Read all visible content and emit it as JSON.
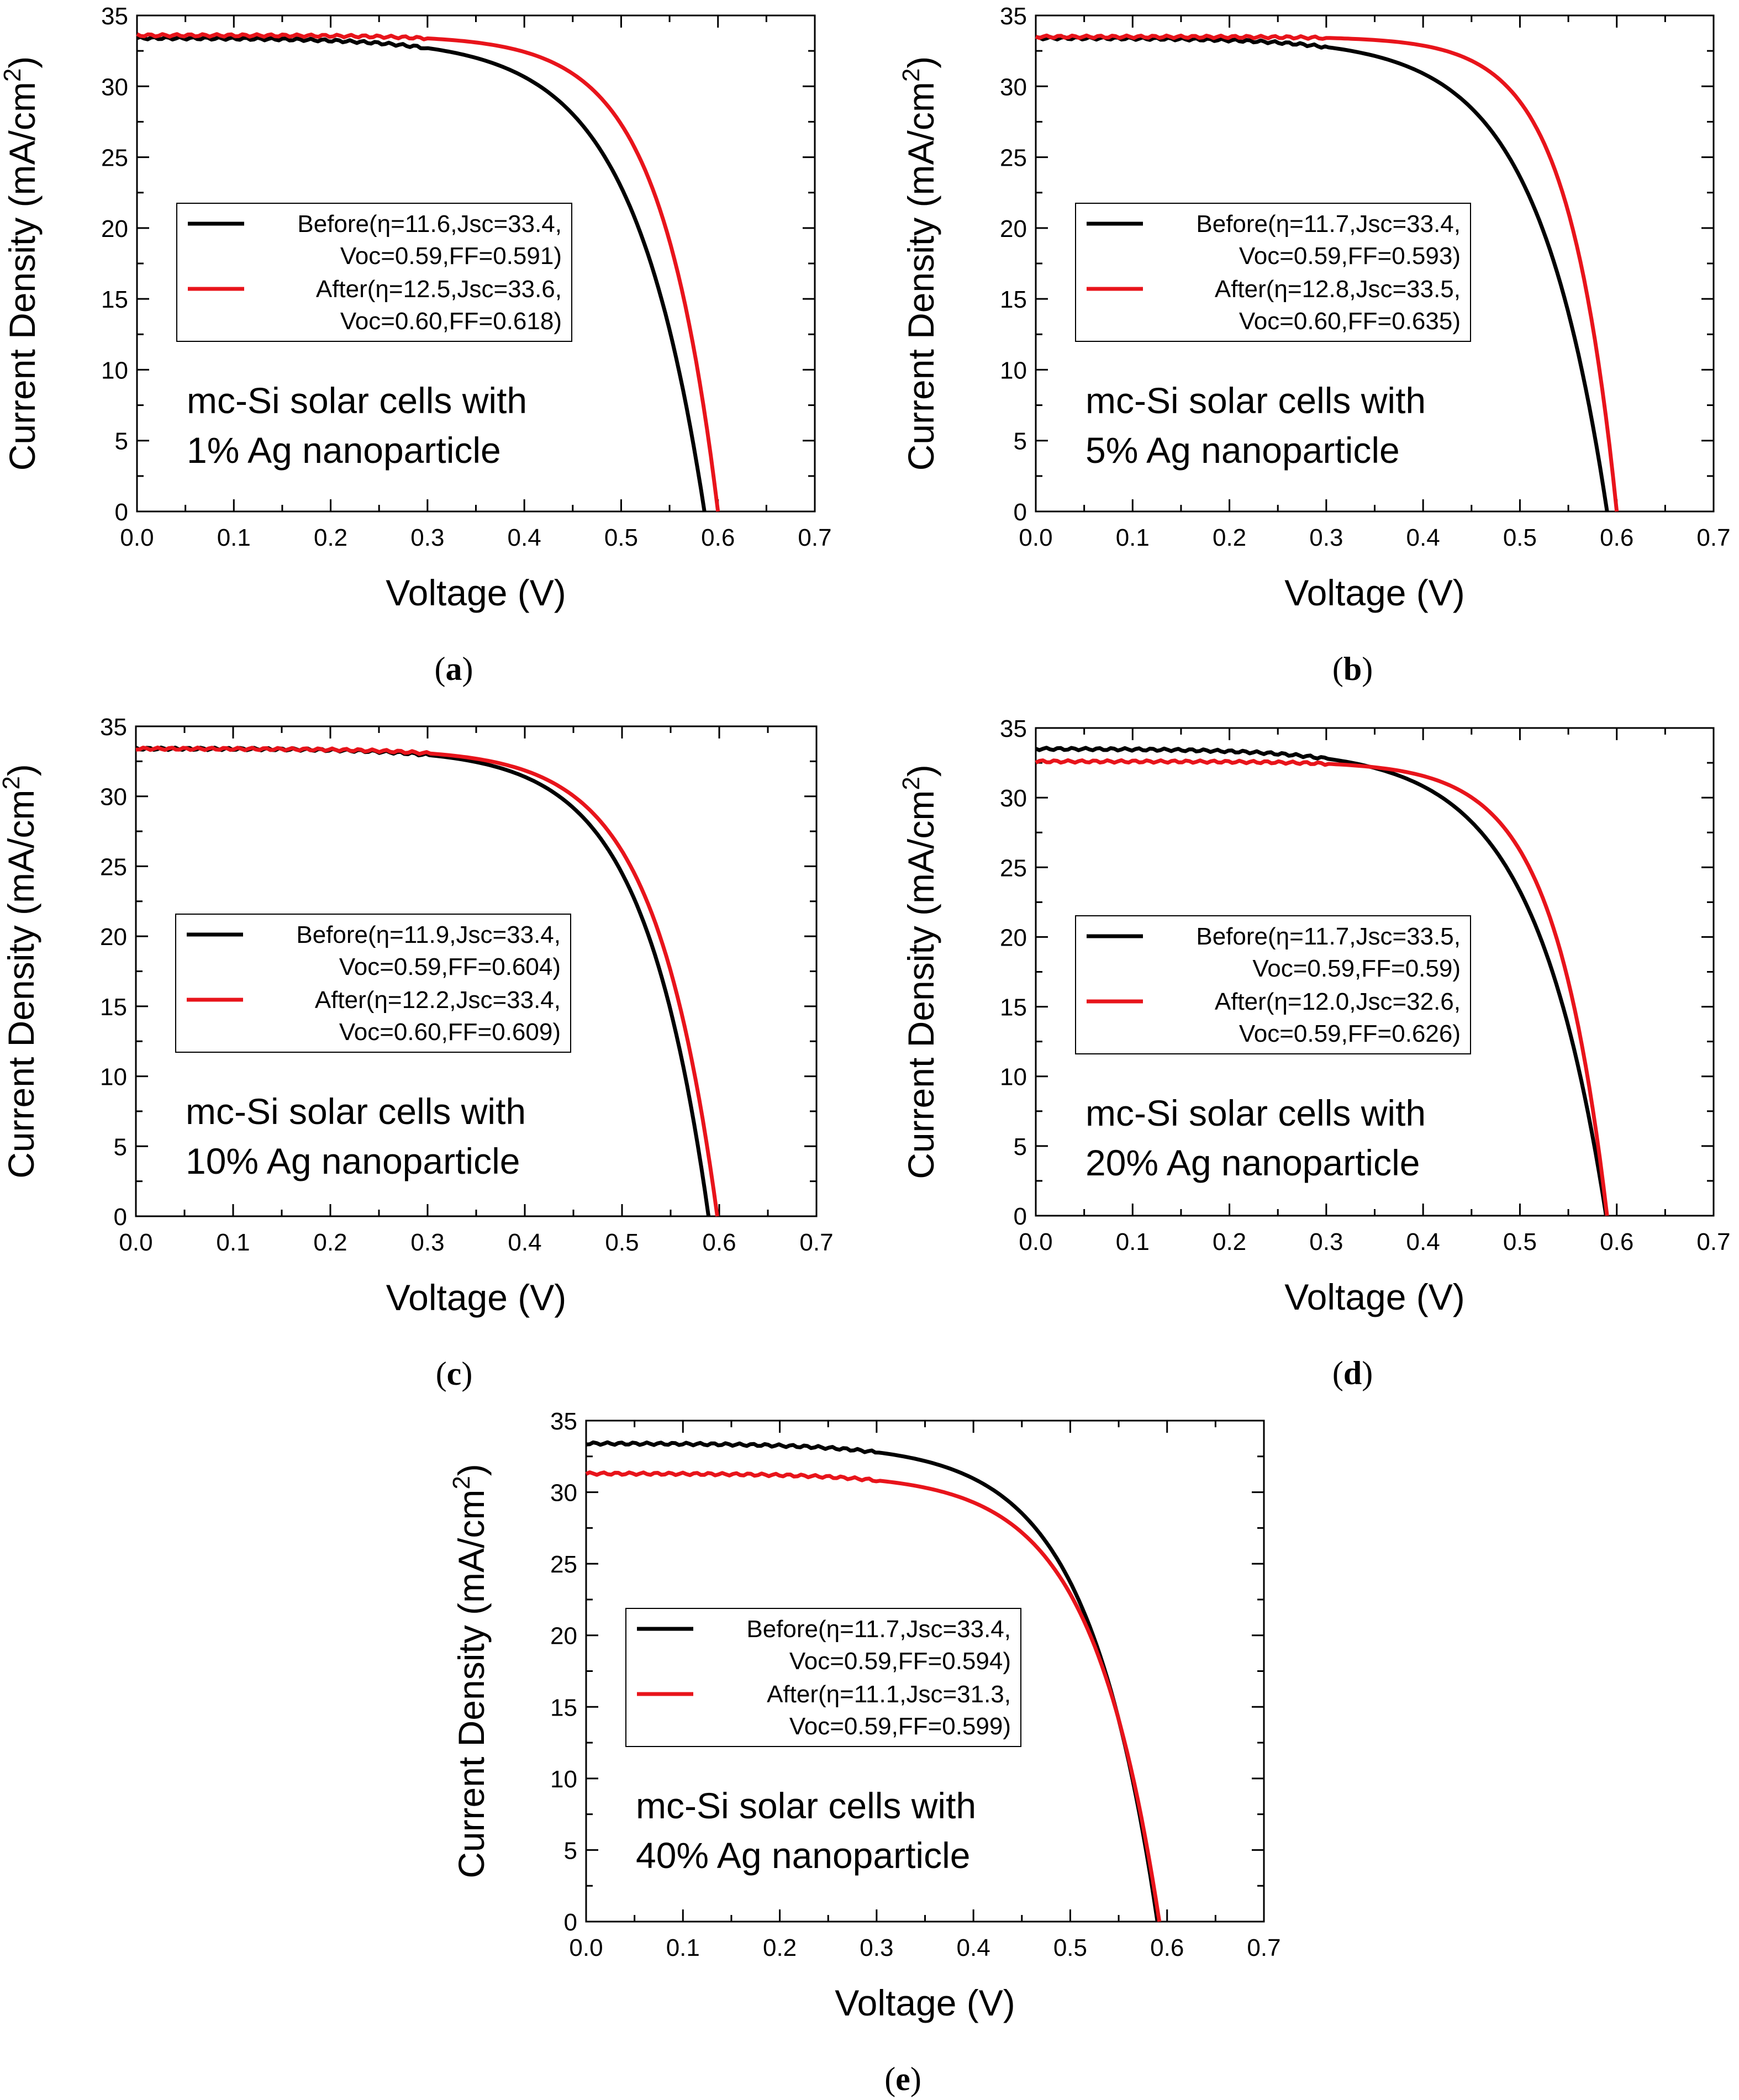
{
  "colors": {
    "before": "#000000",
    "after": "#e8141b",
    "axis": "#000000"
  },
  "chart_data": [
    {
      "panel": "(a)",
      "type": "line",
      "xlabel": "Voltage (V)",
      "ylabel": "Current Density (mA/cm2)",
      "xlim": [
        0.0,
        0.7
      ],
      "ylim": [
        0,
        35
      ],
      "xticks": [
        "0.0",
        "0.1",
        "0.2",
        "0.3",
        "0.4",
        "0.5",
        "0.6",
        "0.7"
      ],
      "yticks": [
        "0",
        "5",
        "10",
        "15",
        "20",
        "25",
        "30",
        "35"
      ],
      "annotation": [
        "mc-Si solar cells with",
        "1% Ag nanoparticle"
      ],
      "legend": [
        "Before(η=11.6,Jsc=33.4,",
        "Voc=0.59,FF=0.591)",
        "After(η=12.5,Jsc=33.6,",
        "Voc=0.60,FF=0.618)"
      ],
      "series": [
        {
          "name": "Before",
          "jsc": 33.4,
          "voc": 0.59,
          "ff": 0.591,
          "eta": 11.6,
          "voc_plot": 0.586
        },
        {
          "name": "After",
          "jsc": 33.6,
          "voc": 0.6,
          "ff": 0.618,
          "eta": 12.5,
          "voc_plot": 0.6
        }
      ]
    },
    {
      "panel": "(b)",
      "type": "line",
      "xlabel": "Voltage (V)",
      "ylabel": "Current Density (mA/cm2)",
      "xlim": [
        0.0,
        0.7
      ],
      "ylim": [
        0,
        35
      ],
      "xticks": [
        "0.0",
        "0.1",
        "0.2",
        "0.3",
        "0.4",
        "0.5",
        "0.6",
        "0.7"
      ],
      "yticks": [
        "0",
        "5",
        "10",
        "15",
        "20",
        "25",
        "30",
        "35"
      ],
      "annotation": [
        "mc-Si solar cells with",
        "5% Ag nanoparticle"
      ],
      "legend": [
        "Before(η=11.7,Jsc=33.4,",
        "Voc=0.59,FF=0.593)",
        "After(η=12.8,Jsc=33.5,",
        "Voc=0.60,FF=0.635)"
      ],
      "series": [
        {
          "name": "Before",
          "jsc": 33.4,
          "voc": 0.59,
          "ff": 0.593,
          "eta": 11.7,
          "voc_plot": 0.59
        },
        {
          "name": "After",
          "jsc": 33.5,
          "voc": 0.6,
          "ff": 0.635,
          "eta": 12.8,
          "voc_plot": 0.6
        }
      ]
    },
    {
      "panel": "(c)",
      "type": "line",
      "xlabel": "Voltage (V)",
      "ylabel": "Current Density (mA/cm2)",
      "xlim": [
        0.0,
        0.7
      ],
      "ylim": [
        0,
        35
      ],
      "xticks": [
        "0.0",
        "0.1",
        "0.2",
        "0.3",
        "0.4",
        "0.5",
        "0.6",
        "0.7"
      ],
      "yticks": [
        "0",
        "5",
        "10",
        "15",
        "20",
        "25",
        "30",
        "35"
      ],
      "annotation": [
        "mc-Si solar cells with",
        "10% Ag nanoparticle"
      ],
      "legend": [
        "Before(η=11.9,Jsc=33.4,",
        "Voc=0.59,FF=0.604)",
        "After(η=12.2,Jsc=33.4,",
        "Voc=0.60,FF=0.609)"
      ],
      "series": [
        {
          "name": "Before",
          "jsc": 33.4,
          "voc": 0.59,
          "ff": 0.604,
          "eta": 11.9,
          "voc_plot": 0.589
        },
        {
          "name": "After",
          "jsc": 33.4,
          "voc": 0.6,
          "ff": 0.609,
          "eta": 12.2,
          "voc_plot": 0.598
        }
      ]
    },
    {
      "panel": "(d)",
      "type": "line",
      "xlabel": "Voltage (V)",
      "ylabel": "Current Density (mA/cm2)",
      "xlim": [
        0.0,
        0.7
      ],
      "ylim": [
        0,
        35
      ],
      "xticks": [
        "0.0",
        "0.1",
        "0.2",
        "0.3",
        "0.4",
        "0.5",
        "0.6",
        "0.7"
      ],
      "yticks": [
        "0",
        "5",
        "10",
        "15",
        "20",
        "25",
        "30",
        "35"
      ],
      "annotation": [
        "mc-Si solar cells with",
        "20% Ag nanoparticle"
      ],
      "legend": [
        "Before(η=11.7,Jsc=33.5,",
        "Voc=0.59,FF=0.59)",
        "After(η=12.0,Jsc=32.6,",
        "Voc=0.59,FF=0.626)"
      ],
      "series": [
        {
          "name": "Before",
          "jsc": 33.5,
          "voc": 0.59,
          "ff": 0.59,
          "eta": 11.7,
          "voc_plot": 0.589
        },
        {
          "name": "After",
          "jsc": 32.6,
          "voc": 0.59,
          "ff": 0.626,
          "eta": 12.0,
          "voc_plot": 0.59
        }
      ]
    },
    {
      "panel": "(e)",
      "type": "line",
      "xlabel": "Voltage (V)",
      "ylabel": "Current Density (mA/cm2)",
      "xlim": [
        0.0,
        0.7
      ],
      "ylim": [
        0,
        35
      ],
      "xticks": [
        "0.0",
        "0.1",
        "0.2",
        "0.3",
        "0.4",
        "0.5",
        "0.6",
        "0.7"
      ],
      "yticks": [
        "0",
        "5",
        "10",
        "15",
        "20",
        "25",
        "30",
        "35"
      ],
      "annotation": [
        "mc-Si solar cells with",
        "40% Ag nanoparticle"
      ],
      "legend": [
        "Before(η=11.7,Jsc=33.4,",
        "Voc=0.59,FF=0.594)",
        "After(η=11.1,Jsc=31.3,",
        "Voc=0.59,FF=0.599)"
      ],
      "series": [
        {
          "name": "Before",
          "jsc": 33.4,
          "voc": 0.59,
          "ff": 0.594,
          "eta": 11.7,
          "voc_plot": 0.59
        },
        {
          "name": "After",
          "jsc": 31.3,
          "voc": 0.59,
          "ff": 0.599,
          "eta": 11.1,
          "voc_plot": 0.592
        }
      ]
    }
  ]
}
